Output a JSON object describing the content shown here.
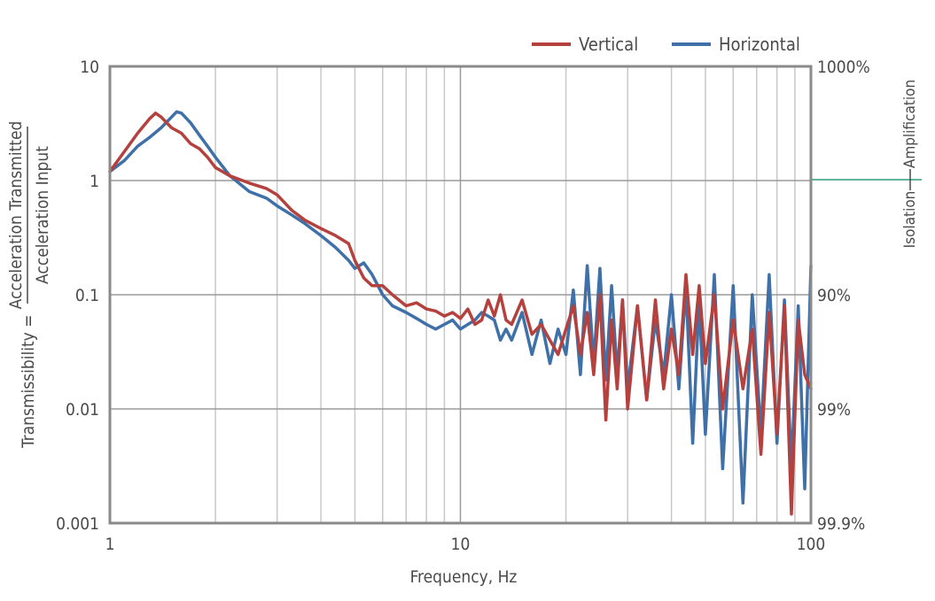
{
  "chart_data": {
    "type": "line",
    "title": "",
    "xlabel": "Frequency, Hz",
    "ylabel": "Transmissibility =",
    "ylabel_numerator": "Acceleration Transmitted",
    "ylabel_denominator": "Acceleration Input",
    "x_scale": "log",
    "y_scale": "log",
    "xlim": [
      1,
      100
    ],
    "ylim": [
      0.001,
      10
    ],
    "x_ticks": [
      "1",
      "10",
      "100"
    ],
    "y_ticks": [
      "10",
      "1",
      "0.1",
      "0.01",
      "0.001"
    ],
    "y2_ticks": [
      "1000%",
      "90%",
      "99%",
      "99.9%"
    ],
    "side_labels": {
      "upper": "Amplification",
      "lower": "Isolation"
    },
    "grid": true,
    "legend_position": "top-right",
    "colors": {
      "Vertical": "#b5413e",
      "Horizontal": "#3f70a8",
      "divider": "#2e9a7a",
      "grid": "#c8c8c8",
      "frame": "#8a8a8a"
    },
    "series": [
      {
        "name": "Vertical",
        "x": [
          1.0,
          1.1,
          1.2,
          1.3,
          1.35,
          1.4,
          1.5,
          1.6,
          1.7,
          1.8,
          1.9,
          2.0,
          2.2,
          2.5,
          2.8,
          3.0,
          3.3,
          3.6,
          4.0,
          4.4,
          4.8,
          5.0,
          5.3,
          5.6,
          6.0,
          6.4,
          7.0,
          7.5,
          8.0,
          8.5,
          9.0,
          9.5,
          10.0,
          10.5,
          11.0,
          11.5,
          12.0,
          12.5,
          13.0,
          13.5,
          14.0,
          15.0,
          16.0,
          17.0,
          18.0,
          19.0,
          20.0,
          21.0,
          22.0,
          23.0,
          24.0,
          25.0,
          26.0,
          27.0,
          28.0,
          29.0,
          30.0,
          32.0,
          34.0,
          36.0,
          38.0,
          40.0,
          42.0,
          44.0,
          46.0,
          48.0,
          50.0,
          53.0,
          56.0,
          60.0,
          64.0,
          68.0,
          72.0,
          76.0,
          80.0,
          84.0,
          88.0,
          92.0,
          96.0,
          100.0
        ],
        "values": [
          1.2,
          1.8,
          2.6,
          3.5,
          3.9,
          3.6,
          2.9,
          2.6,
          2.1,
          1.9,
          1.6,
          1.3,
          1.1,
          0.95,
          0.85,
          0.75,
          0.55,
          0.45,
          0.38,
          0.33,
          0.28,
          0.2,
          0.14,
          0.12,
          0.12,
          0.1,
          0.08,
          0.085,
          0.075,
          0.072,
          0.065,
          0.07,
          0.062,
          0.075,
          0.055,
          0.06,
          0.09,
          0.065,
          0.1,
          0.06,
          0.055,
          0.09,
          0.045,
          0.055,
          0.04,
          0.03,
          0.05,
          0.08,
          0.03,
          0.07,
          0.02,
          0.1,
          0.008,
          0.06,
          0.015,
          0.09,
          0.01,
          0.08,
          0.012,
          0.09,
          0.015,
          0.05,
          0.02,
          0.15,
          0.03,
          0.12,
          0.025,
          0.1,
          0.01,
          0.06,
          0.015,
          0.05,
          0.004,
          0.07,
          0.006,
          0.08,
          0.0012,
          0.06,
          0.02,
          0.015
        ]
      },
      {
        "name": "Horizontal",
        "x": [
          1.0,
          1.1,
          1.2,
          1.3,
          1.4,
          1.5,
          1.55,
          1.6,
          1.7,
          1.8,
          1.9,
          2.0,
          2.2,
          2.5,
          2.8,
          3.0,
          3.3,
          3.6,
          4.0,
          4.4,
          4.8,
          5.0,
          5.3,
          5.6,
          6.0,
          6.4,
          7.0,
          7.5,
          8.0,
          8.5,
          9.0,
          9.5,
          10.0,
          10.5,
          11.0,
          11.5,
          12.0,
          12.5,
          13.0,
          13.5,
          14.0,
          15.0,
          16.0,
          17.0,
          18.0,
          19.0,
          20.0,
          21.0,
          22.0,
          23.0,
          24.0,
          25.0,
          26.0,
          27.0,
          28.0,
          29.0,
          30.0,
          32.0,
          34.0,
          36.0,
          38.0,
          40.0,
          42.0,
          44.0,
          46.0,
          48.0,
          50.0,
          53.0,
          56.0,
          60.0,
          64.0,
          68.0,
          72.0,
          76.0,
          80.0,
          84.0,
          88.0,
          92.0,
          96.0,
          100.0
        ],
        "values": [
          1.2,
          1.5,
          2.0,
          2.4,
          2.9,
          3.6,
          4.0,
          3.9,
          3.2,
          2.5,
          2.0,
          1.6,
          1.1,
          0.8,
          0.7,
          0.6,
          0.5,
          0.42,
          0.33,
          0.26,
          0.2,
          0.17,
          0.19,
          0.15,
          0.1,
          0.08,
          0.07,
          0.062,
          0.055,
          0.05,
          0.055,
          0.06,
          0.05,
          0.055,
          0.06,
          0.07,
          0.065,
          0.06,
          0.04,
          0.05,
          0.04,
          0.07,
          0.03,
          0.06,
          0.025,
          0.05,
          0.03,
          0.11,
          0.02,
          0.18,
          0.025,
          0.17,
          0.018,
          0.12,
          0.02,
          0.09,
          0.015,
          0.08,
          0.012,
          0.06,
          0.02,
          0.1,
          0.015,
          0.12,
          0.005,
          0.09,
          0.006,
          0.15,
          0.003,
          0.12,
          0.0015,
          0.1,
          0.006,
          0.15,
          0.005,
          0.09,
          0.003,
          0.08,
          0.002,
          0.18
        ]
      }
    ]
  }
}
